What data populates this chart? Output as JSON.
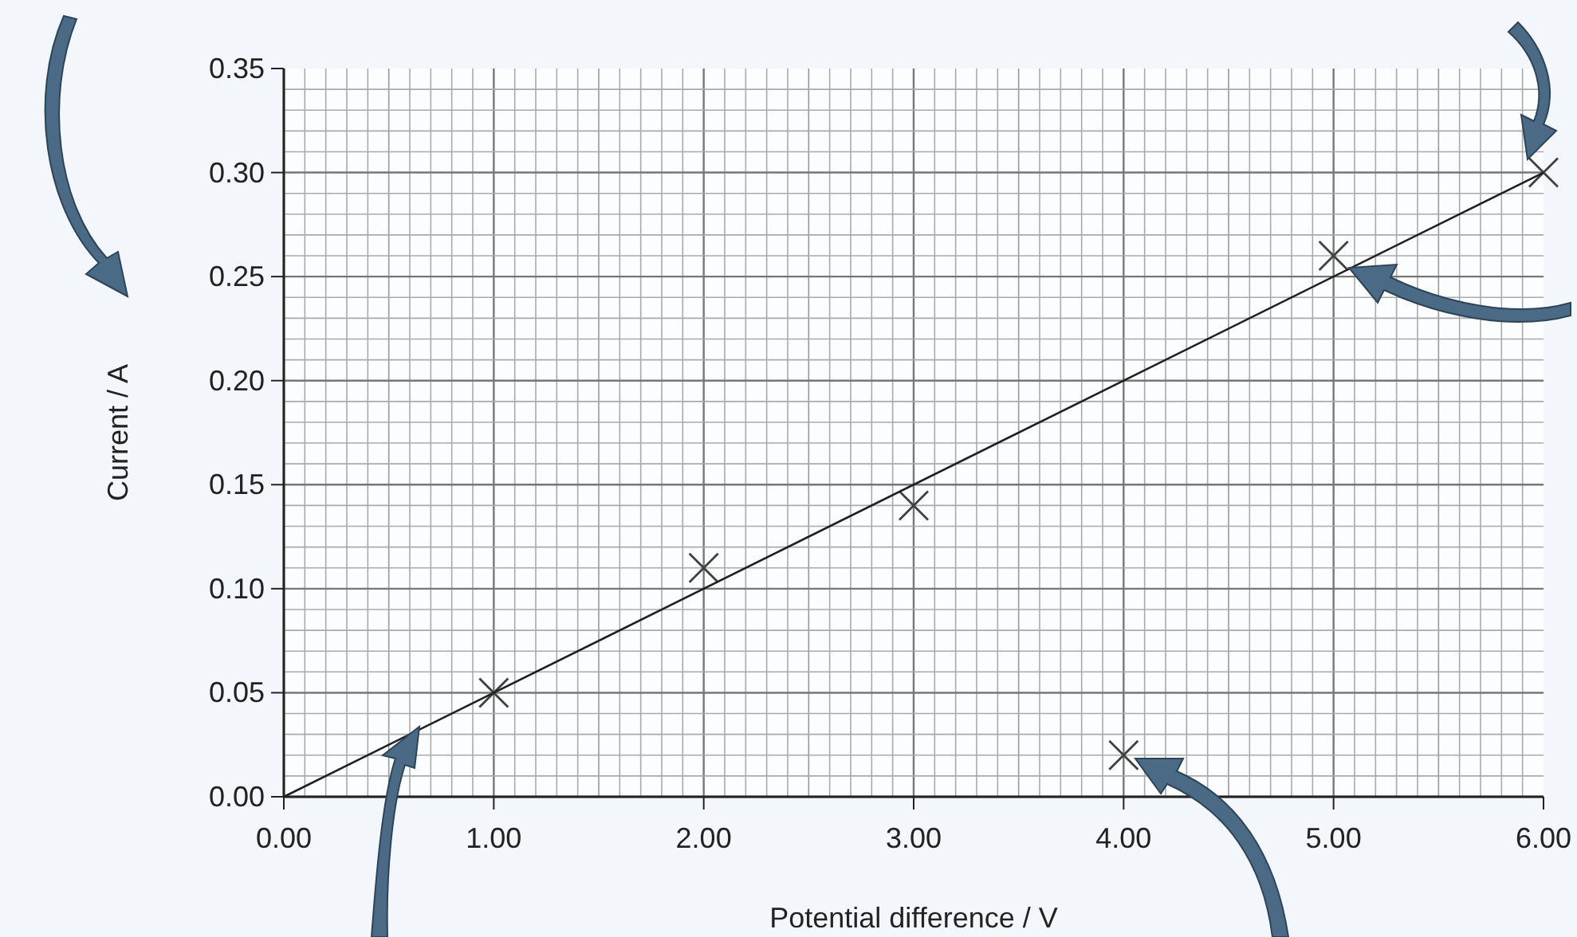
{
  "chart_data": {
    "type": "scatter",
    "xlabel": "Potential difference / V",
    "ylabel": "Current / A",
    "xlim": [
      0,
      6
    ],
    "ylim": [
      0,
      0.35
    ],
    "xticks": [
      {
        "value": 0,
        "label": "0.00"
      },
      {
        "value": 1,
        "label": "1.00"
      },
      {
        "value": 2,
        "label": "2.00"
      },
      {
        "value": 3,
        "label": "3.00"
      },
      {
        "value": 4,
        "label": "4.00"
      },
      {
        "value": 5,
        "label": "5.00"
      },
      {
        "value": 6,
        "label": "6.00"
      }
    ],
    "yticks": [
      {
        "value": 0,
        "label": "0.00"
      },
      {
        "value": 0.05,
        "label": "0.05"
      },
      {
        "value": 0.1,
        "label": "0.10"
      },
      {
        "value": 0.15,
        "label": "0.15"
      },
      {
        "value": 0.2,
        "label": "0.20"
      },
      {
        "value": 0.25,
        "label": "0.25"
      },
      {
        "value": 0.3,
        "label": "0.30"
      },
      {
        "value": 0.35,
        "label": "0.35"
      }
    ],
    "grid": true,
    "series": [
      {
        "marker": "cross",
        "color": "#404040",
        "x": [
          1,
          2,
          3,
          4,
          5,
          6
        ],
        "values": [
          0.05,
          0.11,
          0.14,
          0.02,
          0.26,
          0.3
        ]
      },
      {
        "type": "line",
        "color": "#202020",
        "x": [
          0,
          6
        ],
        "values": [
          0,
          0.3
        ]
      }
    ]
  }
}
